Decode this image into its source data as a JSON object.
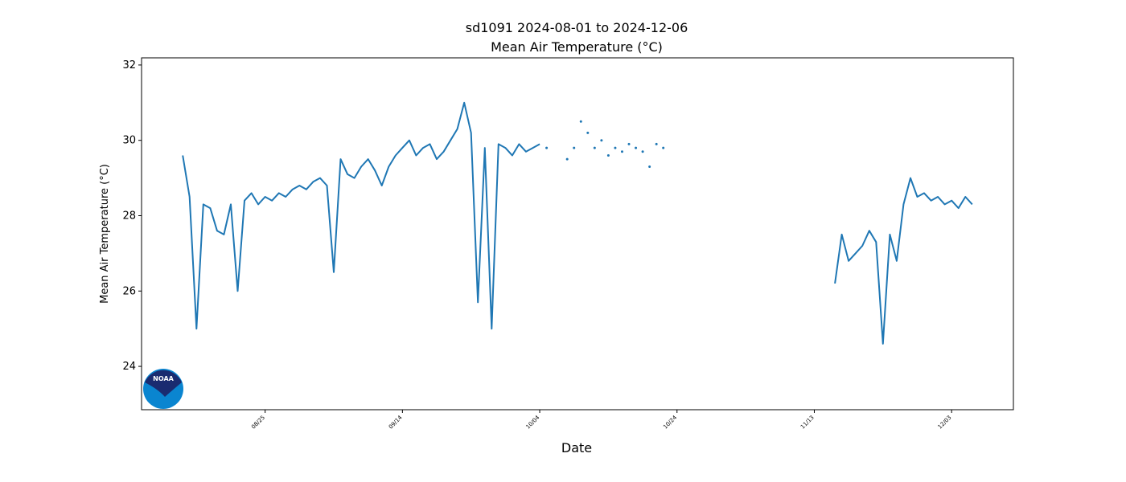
{
  "chart_data": {
    "type": "line",
    "title": "sd1091 2024-08-01 to 2024-12-06",
    "subtitle": "Mean Air Temperature (°C)",
    "x_label": "Date",
    "y_label": "Mean Air Temperature (°C)",
    "logo": "NOAA",
    "xlim": [
      "08/07",
      "12/12"
    ],
    "xticks": [
      "08/25",
      "09/14",
      "10/04",
      "10/24",
      "11/13",
      "12/03"
    ],
    "ylim": [
      22.85,
      32.19
    ],
    "yticks": [
      24,
      26,
      28,
      30,
      32
    ],
    "x": [
      "08/13",
      "08/14",
      "08/15",
      "08/16",
      "08/17",
      "08/18",
      "08/19",
      "08/20",
      "08/21",
      "08/22",
      "08/23",
      "08/24",
      "08/25",
      "08/26",
      "08/27",
      "08/28",
      "08/29",
      "08/30",
      "08/31",
      "09/01",
      "09/02",
      "09/03",
      "09/04",
      "09/05",
      "09/06",
      "09/07",
      "09/08",
      "09/09",
      "09/10",
      "09/11",
      "09/12",
      "09/13",
      "09/14",
      "09/15",
      "09/16",
      "09/17",
      "09/18",
      "09/19",
      "09/20",
      "09/21",
      "09/22",
      "09/23",
      "09/24",
      "09/25",
      "09/26",
      "09/27",
      "09/28",
      "09/29",
      "09/30",
      "10/01",
      "10/02",
      "10/03",
      "10/04",
      "10/05",
      "10/06",
      "10/07",
      "10/08",
      "10/09",
      "10/10",
      "10/11",
      "10/12",
      "10/13",
      "10/14",
      "10/15",
      "10/16",
      "10/17",
      "10/18",
      "10/19",
      "10/20",
      "10/21",
      "10/22",
      "11/15",
      "11/16",
      "11/17",
      "11/18",
      "11/19",
      "11/20",
      "11/21",
      "11/22",
      "11/23",
      "11/24",
      "11/25",
      "11/26",
      "11/27",
      "11/28",
      "11/29",
      "11/30",
      "12/01",
      "12/02",
      "12/03",
      "12/04",
      "12/05",
      "12/06"
    ],
    "series": [
      {
        "style": "line",
        "color": "#1f77b4",
        "values": [
          29.6,
          28.5,
          25.0,
          28.3,
          28.2,
          27.6,
          27.5,
          28.3,
          26.0,
          28.4,
          28.6,
          28.3,
          28.5,
          28.4,
          28.6,
          28.5,
          28.7,
          28.8,
          28.7,
          28.9,
          29.0,
          28.8,
          26.5,
          29.5,
          29.1,
          29.0,
          29.3,
          29.5,
          29.2,
          28.8,
          29.3,
          29.6,
          29.8,
          30.0,
          29.6,
          29.8,
          29.9,
          29.5,
          29.7,
          30.0,
          30.3,
          31.0,
          30.2,
          25.7,
          29.8,
          25.0,
          29.9,
          29.8,
          29.6,
          29.9,
          29.7,
          29.8,
          29.9,
          null,
          null,
          null,
          null,
          null,
          null,
          null,
          null,
          null,
          null,
          null,
          null,
          null,
          null,
          null,
          null,
          null,
          null,
          null,
          26.2,
          27.5,
          26.8,
          27.0,
          27.2,
          27.6,
          27.3,
          24.6,
          27.5,
          26.8,
          28.3,
          29.0,
          28.5,
          28.6,
          28.4,
          28.5,
          28.3,
          28.4,
          28.2,
          28.5,
          28.3
        ]
      },
      {
        "style": "dots",
        "color": "#1f77b4",
        "values": [
          null,
          null,
          null,
          null,
          null,
          null,
          null,
          null,
          null,
          null,
          null,
          null,
          null,
          null,
          null,
          null,
          null,
          null,
          null,
          null,
          null,
          null,
          null,
          null,
          null,
          null,
          null,
          null,
          null,
          null,
          null,
          null,
          null,
          null,
          null,
          null,
          null,
          null,
          null,
          null,
          null,
          null,
          null,
          null,
          null,
          null,
          null,
          null,
          null,
          null,
          null,
          null,
          null,
          29.8,
          null,
          null,
          29.5,
          29.8,
          30.5,
          30.2,
          29.8,
          30.0,
          29.6,
          29.8,
          29.7,
          29.9,
          29.8,
          29.7,
          29.3,
          29.9,
          29.8,
          null,
          null,
          null,
          null,
          null,
          null,
          null,
          null,
          null,
          null,
          null,
          null,
          null,
          null,
          null,
          null,
          null,
          null,
          null,
          null,
          null,
          null
        ]
      }
    ]
  }
}
